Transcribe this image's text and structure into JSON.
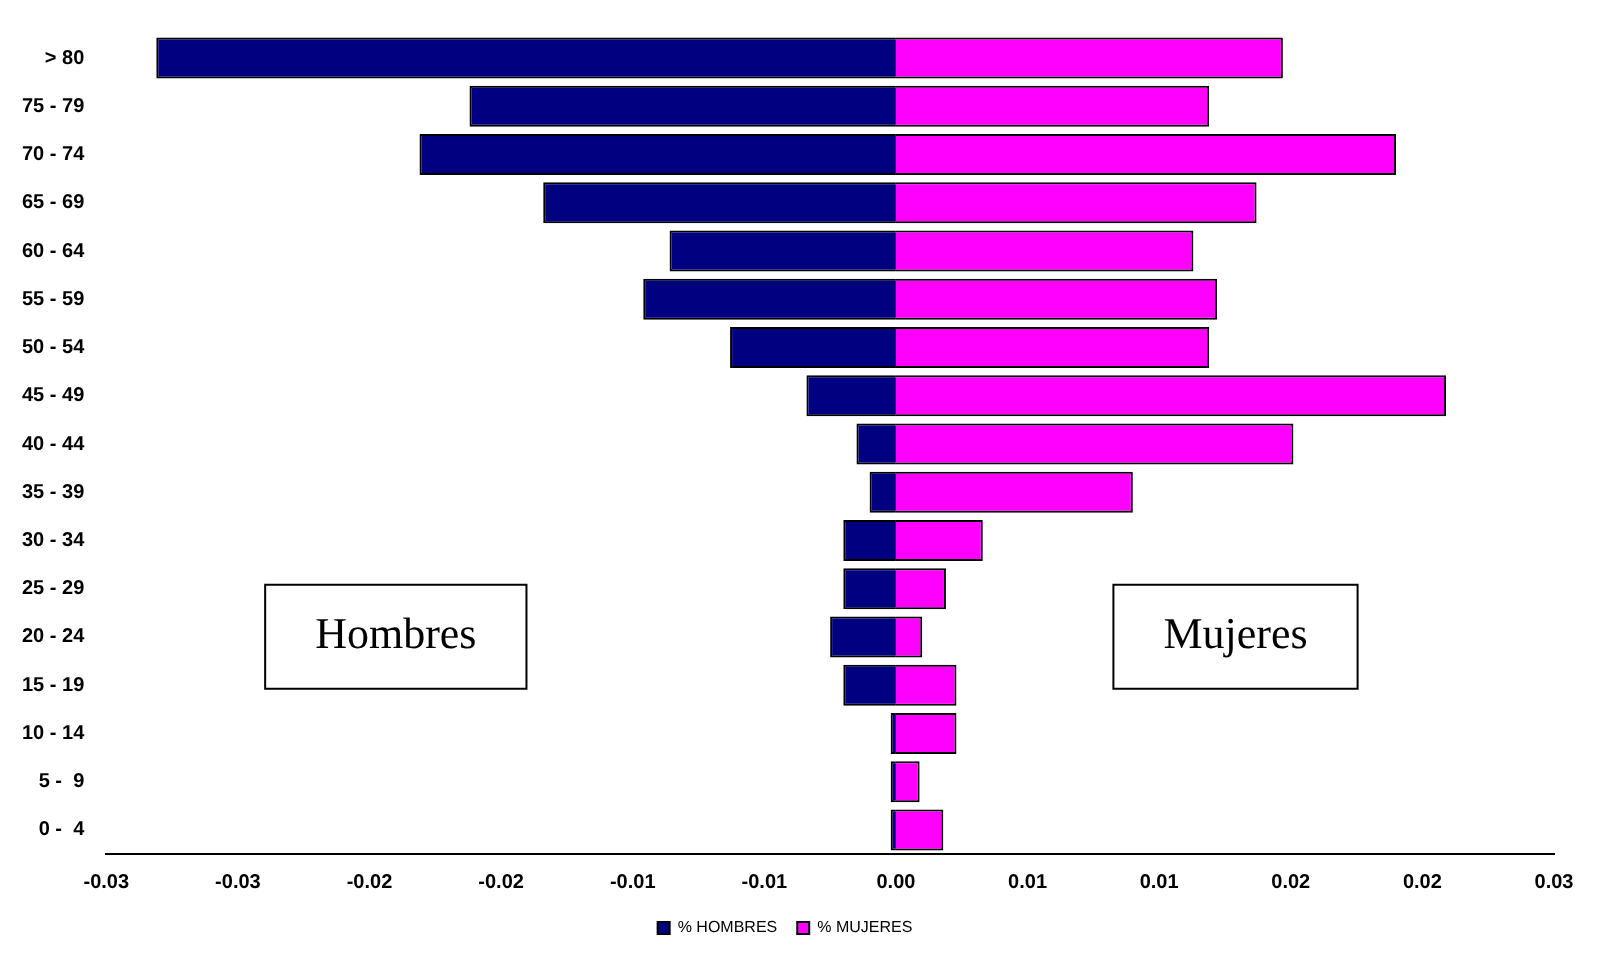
{
  "chart_data": {
    "type": "bar",
    "orientation": "horizontal",
    "stacked": true,
    "categories": [
      "> 80",
      "75 - 79",
      "70 - 74",
      "65 - 69",
      "60 - 64",
      "55 - 59",
      "50 - 54",
      "45 - 49",
      "40 - 44",
      "35 - 39",
      "30 - 34",
      "25 - 29",
      "20 - 24",
      "15 - 19",
      "10 - 14",
      "5 -  9",
      "0 -  4"
    ],
    "series": [
      {
        "name": "% HOMBRES",
        "color": "#000080",
        "values": [
          -0.0281,
          -0.0162,
          -0.0181,
          -0.0134,
          -0.0086,
          -0.0096,
          -0.0063,
          -0.0034,
          -0.0015,
          -0.001,
          -0.002,
          -0.002,
          -0.0025,
          -0.002,
          -0.0002,
          -0.0002,
          -0.0002
        ]
      },
      {
        "name": "% MUJERES",
        "color": "#ff00ff",
        "values": [
          0.0147,
          0.0119,
          0.019,
          0.0137,
          0.0113,
          0.0122,
          0.0119,
          0.0209,
          0.0151,
          0.009,
          0.0033,
          0.0019,
          0.001,
          0.0023,
          0.0023,
          0.0009,
          0.0018
        ]
      }
    ],
    "xlim": [
      -0.03,
      0.025
    ],
    "xticks": [
      {
        "value": -0.03,
        "label": "-0.03"
      },
      {
        "value": -0.025,
        "label": "-0.03"
      },
      {
        "value": -0.02,
        "label": "-0.02"
      },
      {
        "value": -0.015,
        "label": "-0.02"
      },
      {
        "value": -0.01,
        "label": "-0.01"
      },
      {
        "value": -0.005,
        "label": "-0.01"
      },
      {
        "value": 0,
        "label": "0.00"
      },
      {
        "value": 0.005,
        "label": "0.01"
      },
      {
        "value": 0.01,
        "label": "0.01"
      },
      {
        "value": 0.015,
        "label": "0.02"
      },
      {
        "value": 0.02,
        "label": "0.02"
      },
      {
        "value": 0.025,
        "label": "0.03"
      }
    ],
    "annotations": [
      "Hombres",
      "Mujeres"
    ],
    "legend": "bottom",
    "grid": false
  }
}
